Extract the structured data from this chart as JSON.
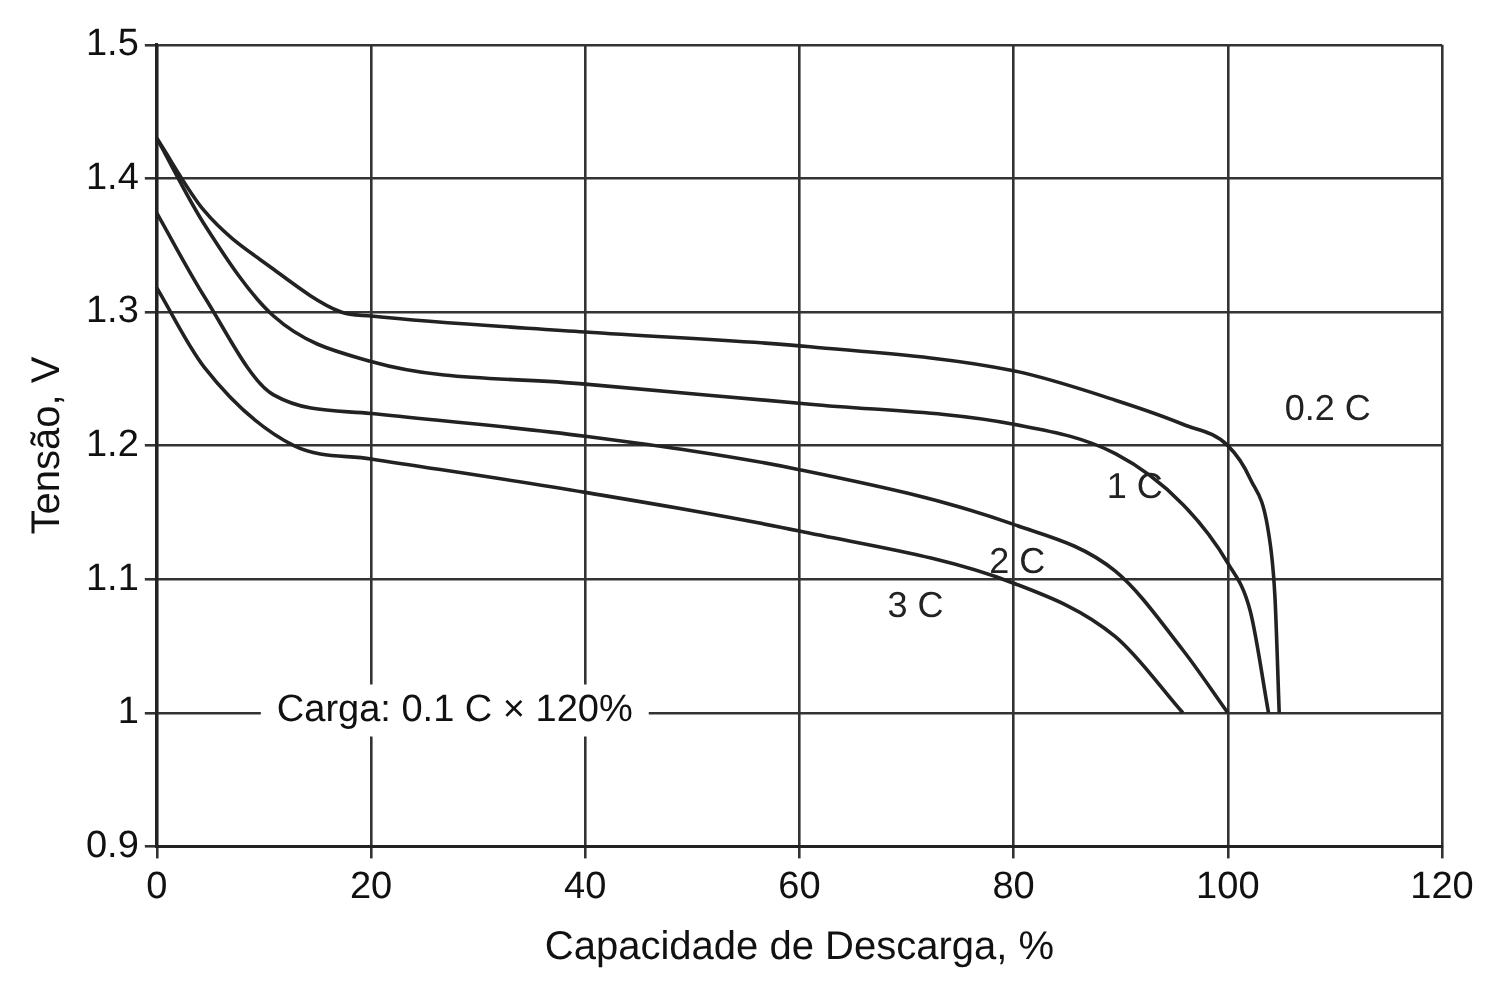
{
  "chart_data": {
    "type": "line",
    "xlabel": "Capacidade de Descarga, %",
    "ylabel": "Tensão, V",
    "xlim": [
      0,
      120
    ],
    "xticks": [
      0,
      20,
      40,
      60,
      80,
      100,
      120
    ],
    "ylim": [
      0.9,
      1.5
    ],
    "yticks": [
      0.9,
      1,
      1.1,
      1.2,
      1.3,
      1.4,
      1.5
    ],
    "grid": true,
    "legend": false,
    "marker": "none",
    "line_style": "solid",
    "annotations": [
      "Carga: 0.1 C × 120%"
    ],
    "series": [
      {
        "name": "0.2 C",
        "color": "#222222",
        "x": [
          0,
          4.4,
          10.9,
          17.2,
          20,
          40,
          61,
          80,
          89.5,
          95.8,
          100,
          102.1,
          103.8,
          104.4,
          104.8
        ],
        "values": [
          1.43,
          1.376,
          1.332,
          1.3,
          1.297,
          1.285,
          1.274,
          1.256,
          1.234,
          1.216,
          1.2,
          1.175,
          1.135,
          1.087,
          1.0
        ]
      },
      {
        "name": "1 C",
        "color": "#222222",
        "x": [
          0,
          4.4,
          10.9,
          20,
          40,
          61,
          80,
          89.5,
          95.8,
          100,
          102.1,
          103.8
        ],
        "values": [
          1.43,
          1.366,
          1.297,
          1.263,
          1.246,
          1.231,
          1.216,
          1.194,
          1.156,
          1.112,
          1.076,
          1.0
        ]
      },
      {
        "name": "2 C",
        "color": "#222222",
        "x": [
          0,
          4.4,
          10.9,
          20,
          40,
          60,
          80,
          89.5,
          95.8,
          100
        ],
        "values": [
          1.374,
          1.312,
          1.238,
          1.224,
          1.207,
          1.182,
          1.141,
          1.106,
          1.047,
          1.0
        ]
      },
      {
        "name": "3 C",
        "color": "#222222",
        "x": [
          0,
          4.4,
          12.8,
          20,
          40,
          60,
          80,
          89.5,
          95.8
        ],
        "values": [
          1.318,
          1.259,
          1.2,
          1.19,
          1.165,
          1.136,
          1.097,
          1.057,
          1.0
        ]
      }
    ]
  }
}
